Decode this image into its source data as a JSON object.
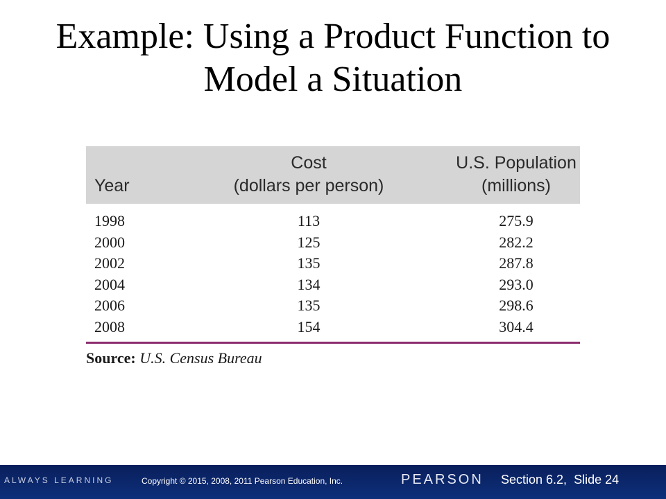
{
  "title": {
    "line1": "Example: Using a Product Function to",
    "line2": "Model a Situation"
  },
  "table": {
    "headers": {
      "year": "Year",
      "cost_line1": "Cost",
      "cost_line2": "(dollars per person)",
      "pop_line1": "U.S. Population",
      "pop_line2": "(millions)"
    },
    "rows": [
      {
        "year": "1998",
        "cost": "113",
        "population": "275.9"
      },
      {
        "year": "2000",
        "cost": "125",
        "population": "282.2"
      },
      {
        "year": "2002",
        "cost": "135",
        "population": "287.8"
      },
      {
        "year": "2004",
        "cost": "134",
        "population": "293.0"
      },
      {
        "year": "2006",
        "cost": "135",
        "population": "298.6"
      },
      {
        "year": "2008",
        "cost": "154",
        "population": "304.4"
      }
    ],
    "rule_color": "#8b2d6e",
    "header_bg": "#d5d5d5"
  },
  "source": {
    "label": "Source:",
    "text": "U.S. Census Bureau"
  },
  "footer": {
    "always_learning": "ALWAYS LEARNING",
    "copyright": "Copyright © 2015, 2008, 2011 Pearson Education, Inc.",
    "brand": "PEARSON",
    "slide_info": "Section 6.2,  Slide 24",
    "bg_color": "#0d2f7a"
  }
}
